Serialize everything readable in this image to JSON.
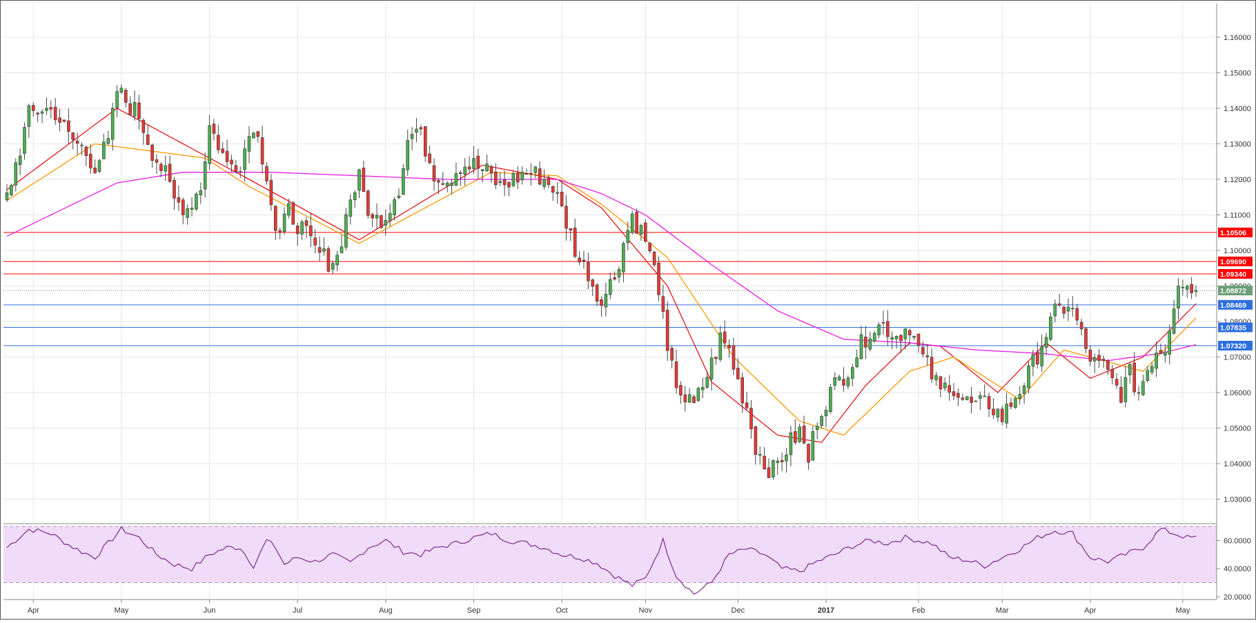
{
  "chart_data": [
    {
      "type": "candlestick",
      "pair_note": "",
      "price_axis": {
        "ylim": [
          1.0235,
          1.1695
        ],
        "tick_labels": [
          "1.16000",
          "1.15000",
          "1.14000",
          "1.13000",
          "1.12000",
          "1.11000",
          "1.10000",
          "1.09000",
          "1.08000",
          "1.07000",
          "1.06000",
          "1.05000",
          "1.04000",
          "1.03000"
        ],
        "tick_values": [
          1.16,
          1.15,
          1.14,
          1.13,
          1.12,
          1.11,
          1.1,
          1.09,
          1.08,
          1.07,
          1.06,
          1.05,
          1.04,
          1.03
        ]
      },
      "time_axis": {
        "labels": [
          "Apr",
          "May",
          "Jun",
          "Jul",
          "Aug",
          "Sep",
          "Oct",
          "Nov",
          "Dec",
          "2017",
          "Feb",
          "Mar",
          "Apr",
          "May"
        ],
        "label_bars": [
          6,
          26,
          46,
          66,
          86,
          106,
          126,
          145,
          166,
          186,
          207,
          226,
          246,
          267
        ],
        "bold_label": "2017"
      },
      "grid": true,
      "current_price": {
        "value": 1.08872,
        "label": "1.08872",
        "color": "#6b9e76"
      },
      "horizontal_levels": [
        {
          "value": 1.10506,
          "label": "1.10506",
          "color": "#ff0000"
        },
        {
          "value": 1.0969,
          "label": "1.09690",
          "color": "#ff0000"
        },
        {
          "value": 1.0934,
          "label": "1.09340",
          "color": "#ff0000"
        },
        {
          "value": 1.08469,
          "label": "1.08469",
          "color": "#2f6fe0"
        },
        {
          "value": 1.07835,
          "label": "1.07835",
          "color": "#2f6fe0"
        },
        {
          "value": 1.0732,
          "label": "1.07320",
          "color": "#2f6fe0"
        }
      ],
      "moving_averages": [
        {
          "period": 10,
          "color": "#e8161b"
        },
        {
          "period": 20,
          "color": "#ff9800"
        },
        {
          "period": 100,
          "color": "#e81ce0"
        }
      ],
      "colors": {
        "up": "#4caf50",
        "down": "#e53935",
        "wick": "#444444",
        "body_border": "#333333"
      },
      "path_anchors": {
        "bars": [
          0,
          5,
          8,
          11,
          14,
          17,
          20,
          23,
          25,
          27,
          30,
          33,
          36,
          38,
          41,
          44,
          46,
          48,
          50,
          53,
          56,
          59,
          61,
          62,
          64,
          67,
          70,
          73,
          75,
          78,
          80,
          83,
          86,
          89,
          91,
          93,
          95,
          97,
          100,
          103,
          106,
          109,
          112,
          115,
          118,
          121,
          124,
          127,
          130,
          132,
          134,
          136,
          138,
          140,
          142,
          145,
          148,
          150,
          152,
          154,
          156,
          158,
          160,
          162,
          164,
          166,
          168,
          170,
          172,
          174,
          176,
          178,
          180,
          182,
          184,
          186,
          188,
          190,
          193,
          196,
          199,
          202,
          205,
          207,
          210,
          212,
          214,
          217,
          220,
          223,
          226,
          229,
          232,
          235,
          238,
          241,
          243,
          245,
          247,
          249,
          251,
          253,
          255,
          257,
          259,
          261,
          263,
          266,
          268,
          269,
          270
        ],
        "closes": [
          1.115,
          1.138,
          1.14,
          1.139,
          1.132,
          1.129,
          1.124,
          1.13,
          1.145,
          1.142,
          1.138,
          1.128,
          1.121,
          1.114,
          1.112,
          1.118,
          1.135,
          1.13,
          1.124,
          1.125,
          1.136,
          1.122,
          1.106,
          1.104,
          1.111,
          1.106,
          1.1,
          1.097,
          1.098,
          1.115,
          1.12,
          1.108,
          1.11,
          1.118,
          1.131,
          1.134,
          1.129,
          1.122,
          1.12,
          1.124,
          1.124,
          1.122,
          1.118,
          1.12,
          1.122,
          1.121,
          1.118,
          1.108,
          1.097,
          1.094,
          1.087,
          1.088,
          1.093,
          1.102,
          1.11,
          1.103,
          1.09,
          1.07,
          1.063,
          1.058,
          1.056,
          1.062,
          1.068,
          1.075,
          1.072,
          1.063,
          1.056,
          1.045,
          1.04,
          1.038,
          1.042,
          1.046,
          1.049,
          1.041,
          1.053,
          1.058,
          1.062,
          1.065,
          1.071,
          1.078,
          1.079,
          1.076,
          1.079,
          1.072,
          1.065,
          1.06,
          1.063,
          1.058,
          1.056,
          1.057,
          1.053,
          1.059,
          1.065,
          1.074,
          1.082,
          1.085,
          1.08,
          1.072,
          1.068,
          1.067,
          1.063,
          1.06,
          1.065,
          1.06,
          1.067,
          1.072,
          1.073,
          1.092,
          1.09,
          1.089,
          1.0887
        ]
      },
      "ma_reference": {
        "ma10": {
          "bars": [
            0,
            25,
            55,
            80,
            108,
            125,
            135,
            150,
            160,
            175,
            185,
            195,
            205,
            212,
            225,
            236,
            246,
            258,
            270
          ],
          "values": [
            1.117,
            1.14,
            1.12,
            1.103,
            1.124,
            1.12,
            1.112,
            1.09,
            1.063,
            1.048,
            1.046,
            1.062,
            1.074,
            1.073,
            1.06,
            1.074,
            1.064,
            1.07,
            1.085
          ]
        },
        "ma20": {
          "bars": [
            0,
            20,
            45,
            55,
            80,
            110,
            125,
            135,
            150,
            165,
            180,
            190,
            205,
            215,
            230,
            240,
            258,
            270
          ],
          "values": [
            1.114,
            1.13,
            1.126,
            1.118,
            1.102,
            1.122,
            1.121,
            1.113,
            1.098,
            1.07,
            1.052,
            1.048,
            1.066,
            1.07,
            1.058,
            1.072,
            1.066,
            1.081
          ]
        },
        "ma100": {
          "bars": [
            0,
            25,
            40,
            60,
            80,
            100,
            115,
            125,
            135,
            145,
            160,
            175,
            190,
            205,
            220,
            235,
            250,
            262,
            270
          ],
          "values": [
            1.104,
            1.119,
            1.122,
            1.122,
            1.121,
            1.12,
            1.12,
            1.12,
            1.116,
            1.11,
            1.096,
            1.083,
            1.075,
            1.074,
            1.072,
            1.071,
            1.069,
            1.071,
            1.0735
          ]
        }
      }
    },
    {
      "type": "line",
      "indicator": "RSI",
      "ylim": [
        18.5,
        70.5
      ],
      "tick_labels": [
        "60.0000",
        "40.0000",
        "20.0000"
      ],
      "tick_values": [
        60,
        40,
        20
      ],
      "band": [
        30,
        70
      ],
      "color": "#7b2d8e",
      "band_fill": "#f0dbf8",
      "anchors": {
        "bars": [
          0,
          5,
          10,
          14,
          17,
          20,
          23,
          26,
          30,
          34,
          38,
          42,
          46,
          50,
          53,
          56,
          59,
          61,
          63,
          66,
          70,
          74,
          78,
          82,
          86,
          90,
          94,
          98,
          102,
          106,
          110,
          114,
          118,
          122,
          126,
          130,
          134,
          138,
          142,
          145,
          149,
          152,
          156,
          160,
          164,
          168,
          172,
          176,
          180,
          184,
          188,
          192,
          196,
          200,
          204,
          207,
          210,
          214,
          218,
          222,
          226,
          230,
          234,
          238,
          242,
          246,
          250,
          254,
          258,
          262,
          266,
          268,
          270
        ],
        "values": [
          55,
          68,
          65,
          57,
          52,
          48,
          58,
          68,
          62,
          50,
          43,
          40,
          50,
          55,
          55,
          42,
          60,
          55,
          43,
          48,
          45,
          50,
          44,
          55,
          60,
          52,
          50,
          55,
          58,
          62,
          65,
          60,
          58,
          55,
          50,
          48,
          44,
          35,
          28,
          33,
          60,
          35,
          22,
          30,
          50,
          54,
          50,
          40,
          38,
          45,
          50,
          56,
          60,
          58,
          62,
          60,
          58,
          48,
          46,
          42,
          48,
          54,
          62,
          67,
          65,
          48,
          45,
          50,
          55,
          68,
          64,
          62,
          62
        ]
      }
    }
  ]
}
